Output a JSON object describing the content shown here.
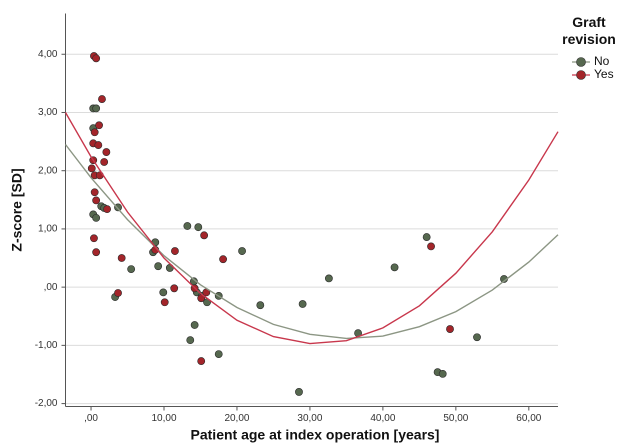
{
  "chart_data": {
    "type": "scatter",
    "x_label": "Patient age at index operation [years]",
    "y_label": "Z-score [SD]",
    "legend_title": "Graft revision",
    "legend_position": "top-right",
    "grid": true,
    "xlim": [
      -3.5,
      64
    ],
    "ylim": [
      -2.05,
      4.7
    ],
    "xticks": [
      {
        "value": 0,
        "label": ",00"
      },
      {
        "value": 10,
        "label": "10,00"
      },
      {
        "value": 20,
        "label": "20,00"
      },
      {
        "value": 30,
        "label": "30,00"
      },
      {
        "value": 40,
        "label": "40,00"
      },
      {
        "value": 50,
        "label": "50,00"
      },
      {
        "value": 60,
        "label": "60,00"
      }
    ],
    "yticks": [
      {
        "value": -2,
        "label": "-2,00"
      },
      {
        "value": -1,
        "label": "-1,00"
      },
      {
        "value": 0,
        "label": ",00"
      },
      {
        "value": 1,
        "label": "1,00"
      },
      {
        "value": 2,
        "label": "2,00"
      },
      {
        "value": 3,
        "label": "3,00"
      },
      {
        "value": 4,
        "label": "4,00"
      }
    ],
    "series": [
      {
        "name": "No",
        "color": "#56684f",
        "x": [
          0.3,
          0.7,
          0.3,
          0.3,
          0.7,
          1.4,
          1.8,
          3.7,
          5.5,
          3.3,
          8.8,
          8.5,
          9.2,
          9.9,
          10.8,
          13.2,
          14.7,
          14.1,
          14.5,
          15.2,
          15.9,
          14.2,
          13.6,
          17.5,
          17.5,
          20.7,
          23.2,
          29.0,
          28.5,
          32.6,
          36.6,
          41.6,
          46.0,
          47.5,
          48.2,
          52.9,
          56.6
        ],
        "values": [
          3.07,
          3.07,
          2.73,
          1.25,
          1.19,
          1.39,
          1.36,
          1.37,
          0.31,
          -0.17,
          0.77,
          0.6,
          0.36,
          -0.09,
          0.33,
          1.05,
          1.03,
          0.1,
          -0.09,
          -0.15,
          -0.26,
          -0.65,
          -0.91,
          -0.15,
          -1.15,
          0.62,
          -0.31,
          -0.29,
          -1.8,
          0.15,
          -0.79,
          0.34,
          0.86,
          -1.46,
          -1.49,
          -0.86,
          0.14
        ]
      },
      {
        "name": "Yes",
        "color": "#a3252a",
        "x": [
          0.4,
          0.7,
          1.5,
          1.1,
          0.5,
          0.3,
          1.0,
          2.1,
          1.8,
          0.3,
          0.1,
          0.5,
          1.2,
          0.5,
          0.7,
          2.2,
          0.4,
          0.7,
          3.7,
          4.2,
          8.8,
          10.1,
          11.5,
          11.4,
          14.2,
          15.5,
          15.1,
          15.8,
          18.1,
          15.1,
          46.6,
          49.2
        ],
        "values": [
          3.97,
          3.93,
          3.23,
          2.78,
          2.66,
          2.47,
          2.44,
          2.32,
          2.15,
          2.18,
          2.04,
          1.92,
          1.92,
          1.63,
          1.49,
          1.34,
          0.84,
          0.6,
          -0.1,
          0.5,
          0.64,
          -0.26,
          0.62,
          -0.02,
          -0.02,
          0.89,
          -0.19,
          -0.09,
          0.48,
          -1.27,
          0.7,
          -0.72
        ]
      }
    ],
    "fit_lines": [
      {
        "color": "#8c9684",
        "x": [
          -3.5,
          0,
          5,
          10,
          15,
          20,
          25,
          30,
          35,
          40,
          45,
          50,
          55,
          60,
          64
        ],
        "values": [
          2.45,
          1.88,
          1.16,
          0.54,
          0.04,
          -0.35,
          -0.64,
          -0.81,
          -0.88,
          -0.84,
          -0.68,
          -0.42,
          -0.05,
          0.43,
          0.9
        ]
      },
      {
        "color": "#c8374c",
        "x": [
          -3.5,
          0,
          5,
          10,
          15,
          20,
          25,
          30,
          35,
          40,
          45,
          50,
          55,
          60,
          64
        ],
        "values": [
          3.0,
          2.24,
          1.29,
          0.5,
          -0.11,
          -0.57,
          -0.85,
          -0.97,
          -0.92,
          -0.7,
          -0.32,
          0.24,
          0.95,
          1.84,
          2.67
        ]
      }
    ]
  }
}
